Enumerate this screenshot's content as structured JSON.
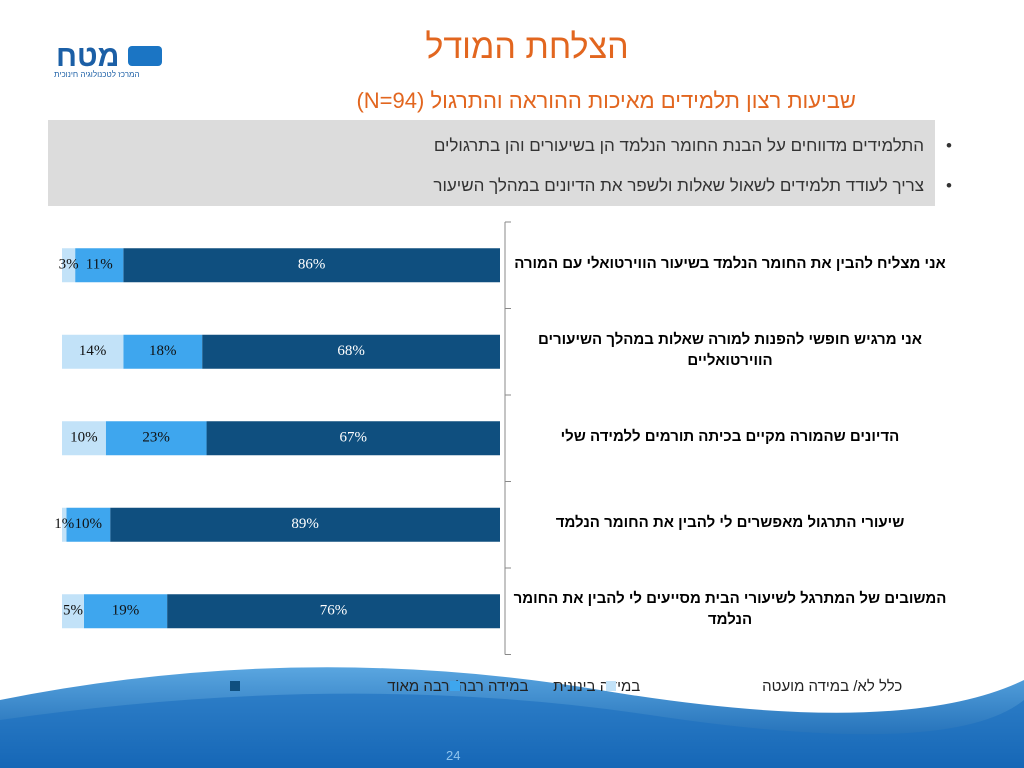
{
  "logo": {
    "name": "מטח",
    "tagline": "המרכז לטכנולוגיה חינוכית"
  },
  "title": "הצלחת המודל",
  "subtitle": "שביעות רצון תלמידים  מאיכות ההוראה והתרגול (N=94)",
  "bullets": [
    "התלמידים מדווחים על הבנת החומר הנלמד הן בשיעורים והן בתרגולים",
    "צריך לעודד תלמידים לשאול שאלות ולשפר את הדיונים במהלך השיעור"
  ],
  "page_number": 24,
  "chart_data": {
    "type": "stacked_bar_horizontal",
    "categories": [
      "אני מצליח להבין את החומר הנלמד בשיעור הווירטואלי עם המורה",
      "אני מרגיש חופשי להפנות למורה שאלות במהלך השיעורים הווירטואליים",
      "הדיונים שהמורה מקיים בכיתה תורמים ללמידה שלי",
      "שיעורי התרגול מאפשרים לי להבין את החומר הנלמד",
      "המשובים של המתרגל לשיעורי הבית מסייעים לי להבין את החומר הנלמד"
    ],
    "xlim": [
      0,
      100
    ],
    "series": [
      {
        "name": "במידה רבה/ רבה מאוד",
        "color": "#0f4f7f",
        "values": [
          86,
          68,
          67,
          89,
          76
        ],
        "value_labels": [
          "86%",
          "68%",
          "67%",
          "89%",
          "76%"
        ]
      },
      {
        "name": "במידה בינונית",
        "color": "#3ea6ee",
        "values": [
          11,
          18,
          23,
          10,
          19
        ],
        "value_labels": [
          "11%",
          "18%",
          "23%",
          "10%",
          "19%"
        ]
      },
      {
        "name": "כלל לא/ במידה מועטה",
        "color": "#c2e2f8",
        "values": [
          3,
          14,
          10,
          1,
          5
        ],
        "value_labels": [
          "3%",
          "14%",
          "10%",
          "1%",
          "5%"
        ]
      }
    ],
    "legend": "bottom"
  }
}
